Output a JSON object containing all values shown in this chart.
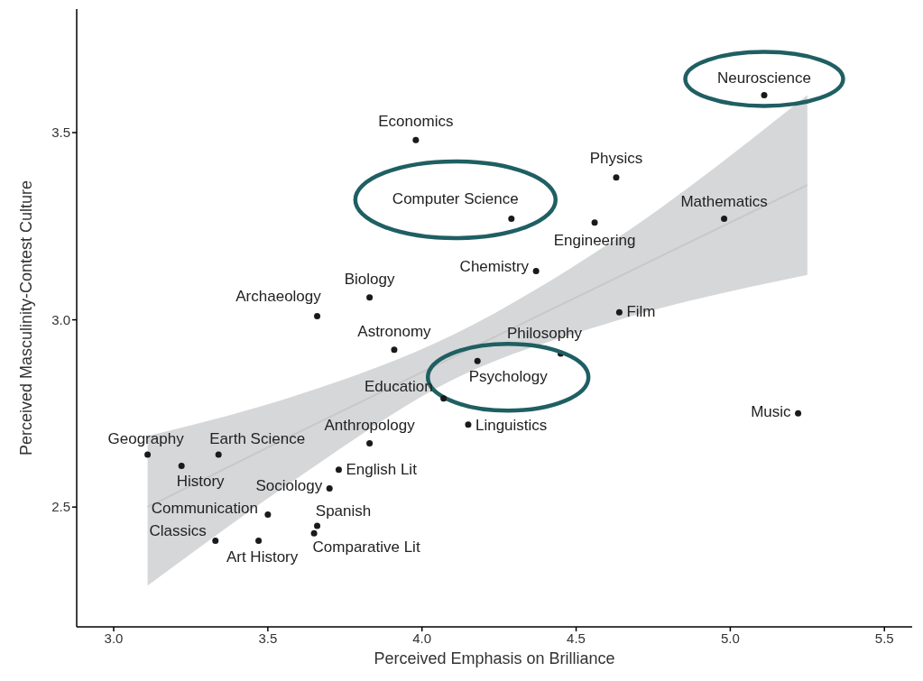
{
  "chart_data": {
    "type": "scatter",
    "xlabel": "Perceived Emphasis on Brilliance",
    "ylabel": "Perceived Masculinity-Contest Culture",
    "xlim": [
      2.88,
      5.59
    ],
    "ylim": [
      2.18,
      3.83
    ],
    "xticks": [
      {
        "value": 3,
        "label": "3.0"
      },
      3.5,
      {
        "value": 4,
        "label": "4.0"
      },
      4.5,
      {
        "value": 5,
        "label": "5.0"
      },
      5.5
    ],
    "yticks": [
      2.5,
      {
        "value": 3,
        "label": "3.0"
      },
      3.5
    ],
    "grid": false,
    "legend": false,
    "series": [
      {
        "type": "line",
        "color": "#c8c8c8",
        "x": [
          3.11,
          3.6,
          4.1,
          4.6,
          5.25
        ],
        "values": [
          2.5,
          2.7,
          2.9,
          3.1,
          3.36
        ],
        "lower": [
          2.29,
          2.58,
          2.84,
          2.99,
          3.12
        ],
        "upper": [
          2.69,
          2.8,
          2.96,
          3.2,
          3.6
        ]
      },
      {
        "color": "#1a1a1a",
        "marker": "circle",
        "x": [
          5.11,
          3.98,
          4.63,
          4.29,
          4.56,
          4.98,
          4.37,
          3.83,
          3.66,
          4.64,
          3.91,
          4.45,
          4.18,
          4.07,
          4.15,
          5.22,
          3.83,
          3.11,
          3.34,
          3.22,
          3.73,
          3.7,
          3.5,
          3.66,
          3.65,
          3.33,
          3.47
        ],
        "values": [
          3.6,
          3.48,
          3.38,
          3.27,
          3.26,
          3.27,
          3.13,
          3.06,
          3.01,
          3.02,
          2.92,
          2.91,
          2.89,
          2.79,
          2.72,
          2.75,
          2.67,
          2.64,
          2.64,
          2.61,
          2.6,
          2.55,
          2.48,
          2.45,
          2.43,
          2.41,
          2.41
        ],
        "value_labels": [
          "Neuroscience",
          "Economics",
          "Physics",
          "Computer Science",
          "Engineering",
          "Mathematics",
          "Chemistry",
          "Biology",
          "Archaeology",
          "Film",
          "Astronomy",
          "Philosophy",
          "Psychology",
          "Education",
          "Linguistics",
          "Music",
          "Anthropology",
          "Geography",
          "Earth Science",
          "History",
          "English Lit",
          "Sociology",
          "Communication",
          "Spanish",
          "Comparative Lit",
          "Classics",
          "Art History"
        ]
      }
    ]
  }
}
